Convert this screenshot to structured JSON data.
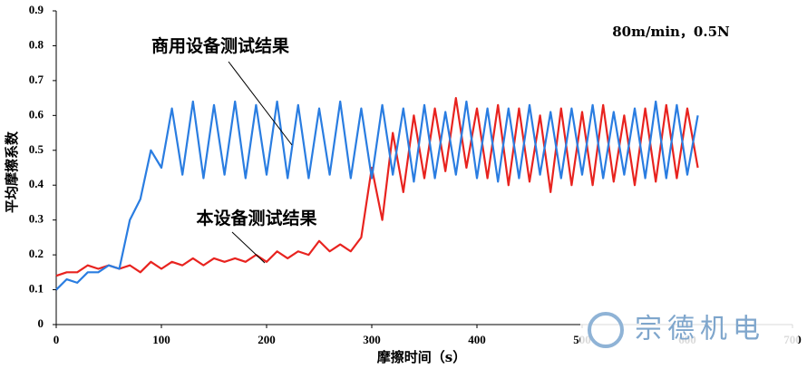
{
  "chart_data": {
    "type": "line",
    "condition": "80m/min，0.5N",
    "annotations": [
      "商用设备测试结果",
      "本设备测试结果"
    ],
    "x_label": "摩擦时间（s）",
    "y_label": "平均摩擦系数",
    "watermark": "宗德机电",
    "x": [
      0,
      10,
      20,
      30,
      40,
      50,
      60,
      70,
      80,
      90,
      100,
      110,
      120,
      130,
      140,
      150,
      160,
      170,
      180,
      190,
      200,
      210,
      220,
      230,
      240,
      250,
      260,
      270,
      280,
      290,
      300,
      310,
      320,
      330,
      340,
      350,
      360,
      370,
      380,
      390,
      400,
      410,
      420,
      430,
      440,
      450,
      460,
      470,
      480,
      490,
      500,
      510,
      520,
      530,
      540,
      550,
      560,
      570,
      580,
      590,
      600,
      610
    ],
    "series": [
      {
        "name": "本设备",
        "color": "#e8231f",
        "values": [
          0.14,
          0.15,
          0.15,
          0.17,
          0.16,
          0.17,
          0.16,
          0.17,
          0.15,
          0.18,
          0.16,
          0.18,
          0.17,
          0.19,
          0.17,
          0.19,
          0.18,
          0.19,
          0.18,
          0.2,
          0.18,
          0.21,
          0.19,
          0.21,
          0.2,
          0.24,
          0.21,
          0.23,
          0.21,
          0.25,
          0.45,
          0.3,
          0.55,
          0.38,
          0.6,
          0.42,
          0.62,
          0.44,
          0.65,
          0.45,
          0.62,
          0.42,
          0.63,
          0.4,
          0.62,
          0.41,
          0.6,
          0.38,
          0.62,
          0.4,
          0.61,
          0.4,
          0.63,
          0.41,
          0.6,
          0.4,
          0.62,
          0.41,
          0.63,
          0.42,
          0.62,
          0.45
        ]
      },
      {
        "name": "商用设备",
        "color": "#2a7de1",
        "values": [
          0.1,
          0.13,
          0.12,
          0.15,
          0.15,
          0.17,
          0.16,
          0.3,
          0.36,
          0.5,
          0.45,
          0.62,
          0.43,
          0.64,
          0.42,
          0.63,
          0.43,
          0.64,
          0.42,
          0.63,
          0.43,
          0.64,
          0.42,
          0.63,
          0.42,
          0.62,
          0.43,
          0.64,
          0.42,
          0.62,
          0.42,
          0.63,
          0.43,
          0.62,
          0.41,
          0.63,
          0.42,
          0.61,
          0.43,
          0.64,
          0.42,
          0.62,
          0.41,
          0.62,
          0.42,
          0.63,
          0.43,
          0.61,
          0.42,
          0.62,
          0.43,
          0.63,
          0.42,
          0.61,
          0.43,
          0.62,
          0.42,
          0.64,
          0.42,
          0.63,
          0.43,
          0.6
        ]
      }
    ],
    "xlim": [
      0,
      700
    ],
    "xticks": [
      0,
      100,
      200,
      300,
      400,
      500,
      600,
      700
    ],
    "ylim": [
      0,
      0.9
    ],
    "yticks": [
      0,
      0.1,
      0.2,
      0.3,
      0.4,
      0.5,
      0.6,
      0.7,
      0.8,
      0.9
    ],
    "grid": false
  }
}
